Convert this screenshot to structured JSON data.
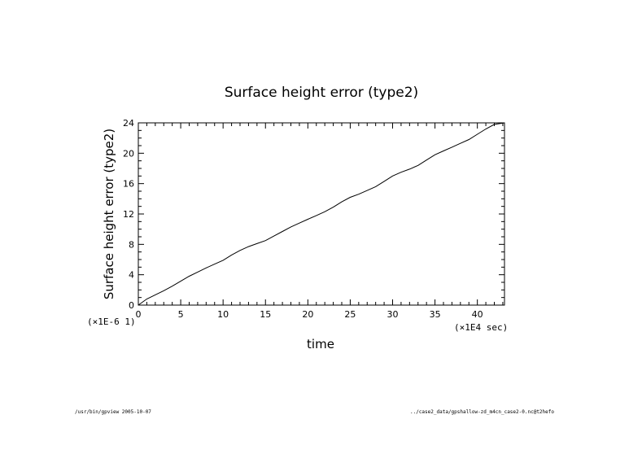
{
  "chart_data": {
    "type": "line",
    "title": "Surface height error (type2)",
    "xlabel": "time",
    "ylabel": "Surface height error (type2)",
    "x_scale_note": "(×1E4 sec)",
    "y_scale_note": "(×1E-6 1)",
    "xlim": [
      0,
      43.2
    ],
    "ylim": [
      0,
      24
    ],
    "xticks": [
      0,
      5,
      10,
      15,
      20,
      25,
      30,
      35,
      40
    ],
    "yticks": [
      0,
      4,
      8,
      12,
      16,
      20,
      24
    ],
    "grid": false,
    "series": [
      {
        "x": [
          0,
          1,
          2,
          3,
          4,
          5,
          6,
          7,
          8,
          9,
          10,
          11,
          12,
          13,
          14,
          15,
          16,
          17,
          18,
          19,
          20,
          21,
          22,
          23,
          24,
          25,
          26,
          27,
          28,
          29,
          30,
          31,
          32,
          33,
          34,
          35,
          36,
          37,
          38,
          39,
          40,
          41,
          42,
          43.2
        ],
        "y": [
          0,
          0.8,
          1.35,
          1.9,
          2.5,
          3.15,
          3.8,
          4.35,
          4.9,
          5.4,
          5.9,
          6.6,
          7.2,
          7.7,
          8.1,
          8.5,
          9.1,
          9.7,
          10.3,
          10.8,
          11.3,
          11.8,
          12.3,
          12.9,
          13.6,
          14.2,
          14.6,
          15.1,
          15.6,
          16.3,
          17.0,
          17.5,
          17.9,
          18.4,
          19.1,
          19.8,
          20.3,
          20.8,
          21.3,
          21.8,
          22.5,
          23.2,
          23.8,
          24.0
        ]
      }
    ]
  },
  "footer": {
    "left": "/usr/bin/gpview  2005-10-07",
    "right": "../case2_data/gpshallow-zd_m4cn_case2-0.nc@t2hefo"
  },
  "colors": {
    "line": "#000000",
    "text": "#000000",
    "background": "#ffffff"
  }
}
